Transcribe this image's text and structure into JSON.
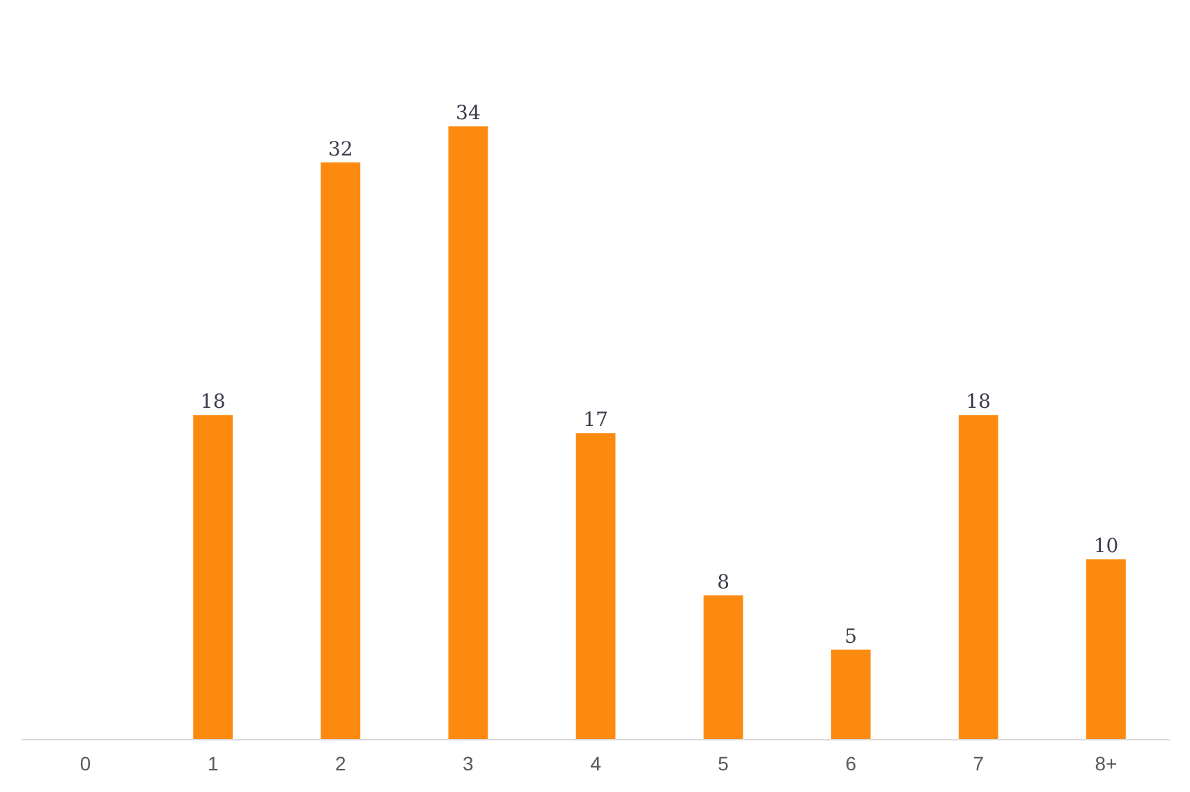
{
  "chart_data": {
    "type": "bar",
    "categories": [
      "0",
      "1",
      "2",
      "3",
      "4",
      "5",
      "6",
      "7",
      "8+"
    ],
    "values": [
      null,
      18,
      32,
      34,
      17,
      8,
      5,
      18,
      10
    ],
    "color": "#fc8a10",
    "data_labels": true,
    "tick_labels": "x"
  }
}
